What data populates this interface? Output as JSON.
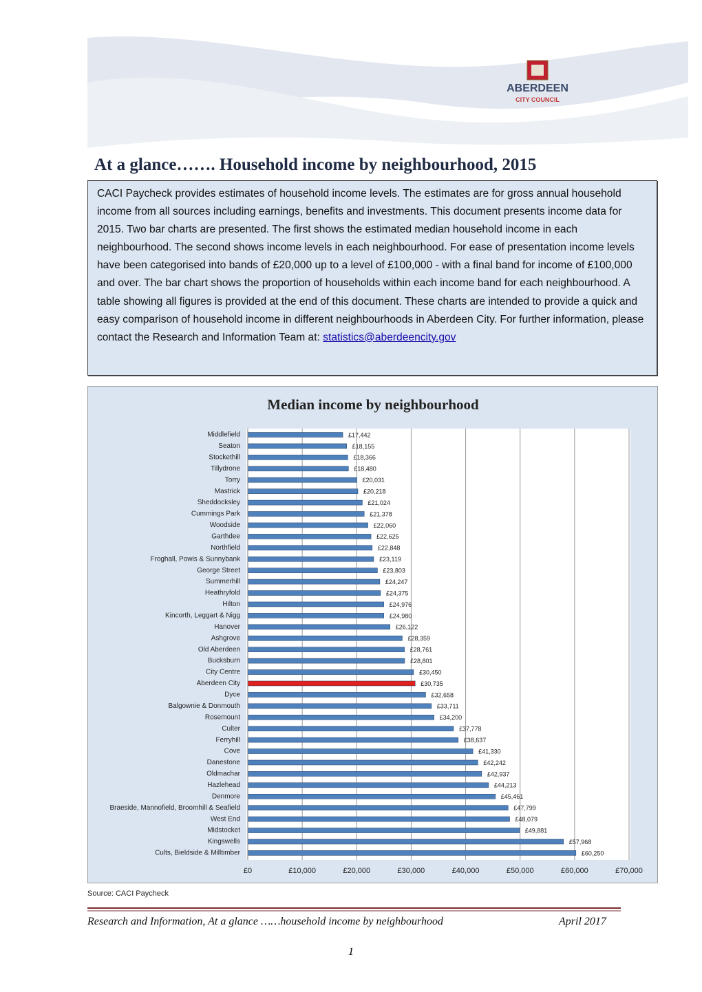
{
  "header": {
    "logo_name": "ABERDEEN",
    "logo_sub": "CITY COUNCIL"
  },
  "title": "At a glance……. Household income by neighbourhood, 2015",
  "intro": {
    "text": "CACI Paycheck provides estimates of household income levels.  The estimates are for gross annual household income from all sources including earnings, benefits and investments. This document presents income data for 2015.  Two bar charts are presented.  The first shows the estimated median household income in each neighbourhood.  The second shows income levels in each neighbourhood. For ease of presentation income levels have been categorised into bands of £20,000 up to a level of £100,000 - with a final band for income of £100,000 and over. The bar chart shows the proportion of households within each income band for each neighbourhood.  A table showing all figures is provided at the end of this document.  These charts are intended to provide a quick and easy comparison of household income in different neighbourhoods in Aberdeen City. For further information, please contact the Research and Information Team at: ",
    "link": "statistics@aberdeencity.gov"
  },
  "chart_data": {
    "type": "bar",
    "orientation": "horizontal",
    "title": "Median income by neighbourhood",
    "categories": [
      "Middlefield",
      "Seaton",
      "Stockethill",
      "Tillydrone",
      "Torry",
      "Mastrick",
      "Sheddocksley",
      "Cummings Park",
      "Woodside",
      "Garthdee",
      "Northfield",
      "Froghall, Powis & Sunnybank",
      "George Street",
      "Summerhill",
      "Heathryfold",
      "Hilton",
      "Kincorth, Leggart & Nigg",
      "Hanover",
      "Ashgrove",
      "Old Aberdeen",
      "Bucksburn",
      "City Centre",
      "Aberdeen City",
      "Dyce",
      "Balgownie & Donmouth",
      "Rosemount",
      "Culter",
      "Ferryhill",
      "Cove",
      "Danestone",
      "Oldmachar",
      "Hazlehead",
      "Denmore",
      "Braeside, Mannofield, Broomhill & Seafield",
      "West End",
      "Midstocket",
      "Kingswells",
      "Cults, Bieldside & Milltimber"
    ],
    "values": [
      17442,
      18155,
      18366,
      18480,
      20031,
      20218,
      21024,
      21378,
      22060,
      22625,
      22848,
      23119,
      23803,
      24247,
      24375,
      24976,
      24980,
      26122,
      28359,
      28761,
      28801,
      30450,
      30735,
      32658,
      33711,
      34200,
      37778,
      38637,
      41330,
      42242,
      42937,
      44213,
      45461,
      47799,
      48079,
      49881,
      57968,
      60250
    ],
    "value_labels": [
      "£17,442",
      "£18,155",
      "£18,366",
      "£18,480",
      "£20,031",
      "£20,218",
      "£21,024",
      "£21,378",
      "£22,060",
      "£22,625",
      "£22,848",
      "£23,119",
      "£23,803",
      "£24,247",
      "£24,375",
      "£24,976",
      "£24,980",
      "£26,122",
      "£28,359",
      "£28,761",
      "£28,801",
      "£30,450",
      "£30,735",
      "£32,658",
      "£33,711",
      "£34,200",
      "£37,778",
      "£38,637",
      "£41,330",
      "£42,242",
      "£42,937",
      "£44,213",
      "£45,461",
      "£47,799",
      "£48,079",
      "£49,881",
      "£57,968",
      "£60,250"
    ],
    "colors": [
      "#4f81bd",
      "#4f81bd",
      "#4f81bd",
      "#4f81bd",
      "#4f81bd",
      "#4f81bd",
      "#4f81bd",
      "#4f81bd",
      "#4f81bd",
      "#4f81bd",
      "#4f81bd",
      "#4f81bd",
      "#4f81bd",
      "#4f81bd",
      "#4f81bd",
      "#4f81bd",
      "#4f81bd",
      "#4f81bd",
      "#4f81bd",
      "#4f81bd",
      "#4f81bd",
      "#4f81bd",
      "#e0201c",
      "#4f81bd",
      "#4f81bd",
      "#4f81bd",
      "#4f81bd",
      "#4f81bd",
      "#4f81bd",
      "#4f81bd",
      "#4f81bd",
      "#4f81bd",
      "#4f81bd",
      "#4f81bd",
      "#4f81bd",
      "#4f81bd",
      "#4f81bd",
      "#4f81bd"
    ],
    "xlim": [
      0,
      70000
    ],
    "xticks": [
      {
        "value": 0,
        "label": "£0"
      },
      {
        "value": 10000,
        "label": "£10,000"
      },
      {
        "value": 20000,
        "label": "£20,000"
      },
      {
        "value": 30000,
        "label": "£30,000"
      },
      {
        "value": 40000,
        "label": "£40,000"
      },
      {
        "value": 50000,
        "label": "£50,000"
      },
      {
        "value": 60000,
        "label": "£60,000"
      },
      {
        "value": 70000,
        "label": "£70,000"
      }
    ],
    "grid": true
  },
  "source": "Source: CACI Paycheck",
  "footer": {
    "left": "Research and Information, At a glance ……household income by neighbourhood",
    "right": "April 2017"
  },
  "page_number": "1"
}
